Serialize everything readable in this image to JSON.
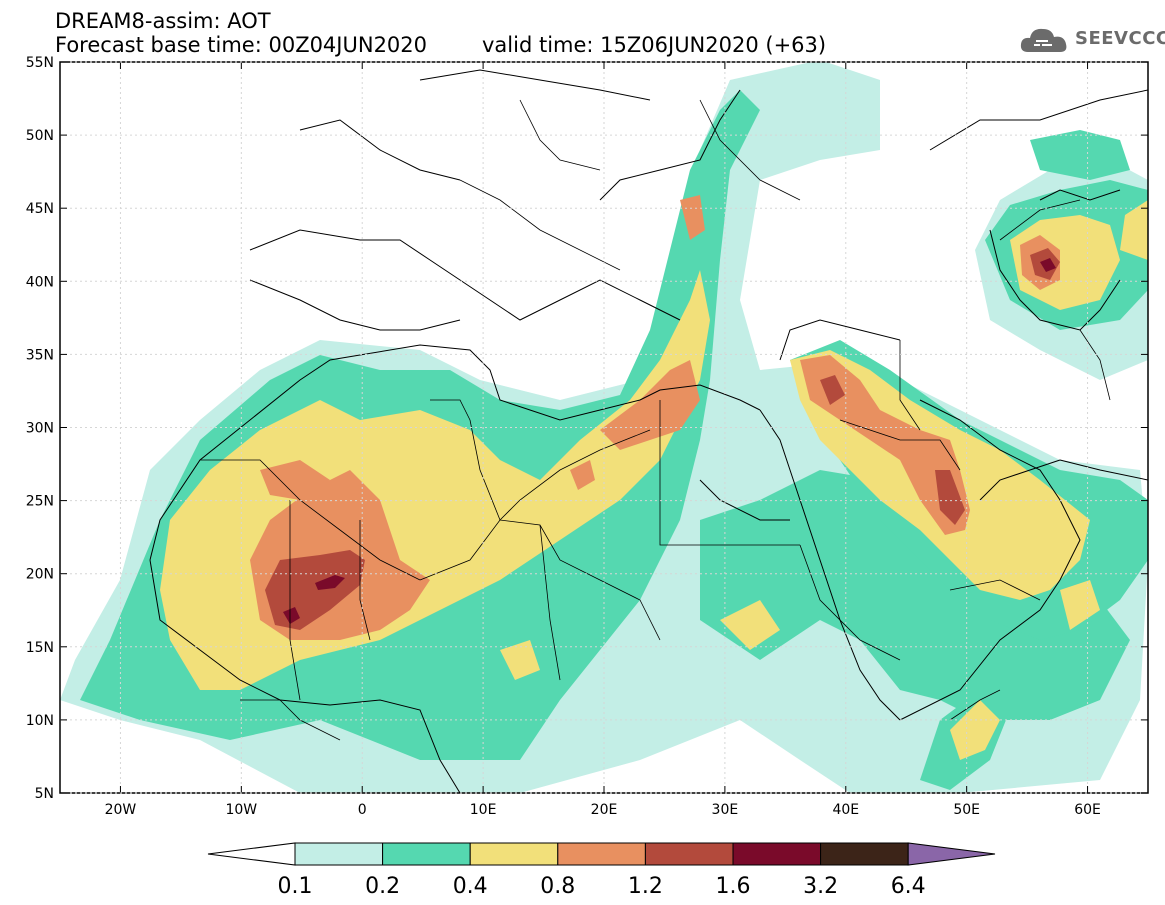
{
  "header": {
    "line1": "DREAM8-assim: AOT",
    "line2": "Forecast base time: 00Z04JUN2020",
    "valid": "valid time: 15Z06JUN2020 (+63)"
  },
  "logo": {
    "text": "SEEVCCC",
    "icon": "cloud-logo-icon"
  },
  "map": {
    "lon_range": [
      -25,
      65
    ],
    "lat_range": [
      5,
      55
    ],
    "lon_ticks": [
      {
        "v": -20,
        "label": "20W"
      },
      {
        "v": -10,
        "label": "10W"
      },
      {
        "v": 0,
        "label": "0"
      },
      {
        "v": 10,
        "label": "10E"
      },
      {
        "v": 20,
        "label": "20E"
      },
      {
        "v": 30,
        "label": "30E"
      },
      {
        "v": 40,
        "label": "40E"
      },
      {
        "v": 50,
        "label": "50E"
      },
      {
        "v": 60,
        "label": "60E"
      }
    ],
    "lat_ticks": [
      {
        "v": 5,
        "label": "5N"
      },
      {
        "v": 10,
        "label": "10N"
      },
      {
        "v": 15,
        "label": "15N"
      },
      {
        "v": 20,
        "label": "20N"
      },
      {
        "v": 25,
        "label": "25N"
      },
      {
        "v": 30,
        "label": "30N"
      },
      {
        "v": 35,
        "label": "35N"
      },
      {
        "v": 40,
        "label": "40N"
      },
      {
        "v": 45,
        "label": "45N"
      },
      {
        "v": 50,
        "label": "50N"
      },
      {
        "v": 55,
        "label": "55N"
      }
    ]
  },
  "colorbar": {
    "thresholds": [
      "0.1",
      "0.2",
      "0.4",
      "0.8",
      "1.2",
      "1.6",
      "3.2",
      "6.4"
    ],
    "colors": [
      "#ffffff",
      "#c3eee6",
      "#55d8b0",
      "#f2e07a",
      "#e89060",
      "#b34a3c",
      "#7a0a2a",
      "#3c2418",
      "#8a66a8"
    ]
  }
}
